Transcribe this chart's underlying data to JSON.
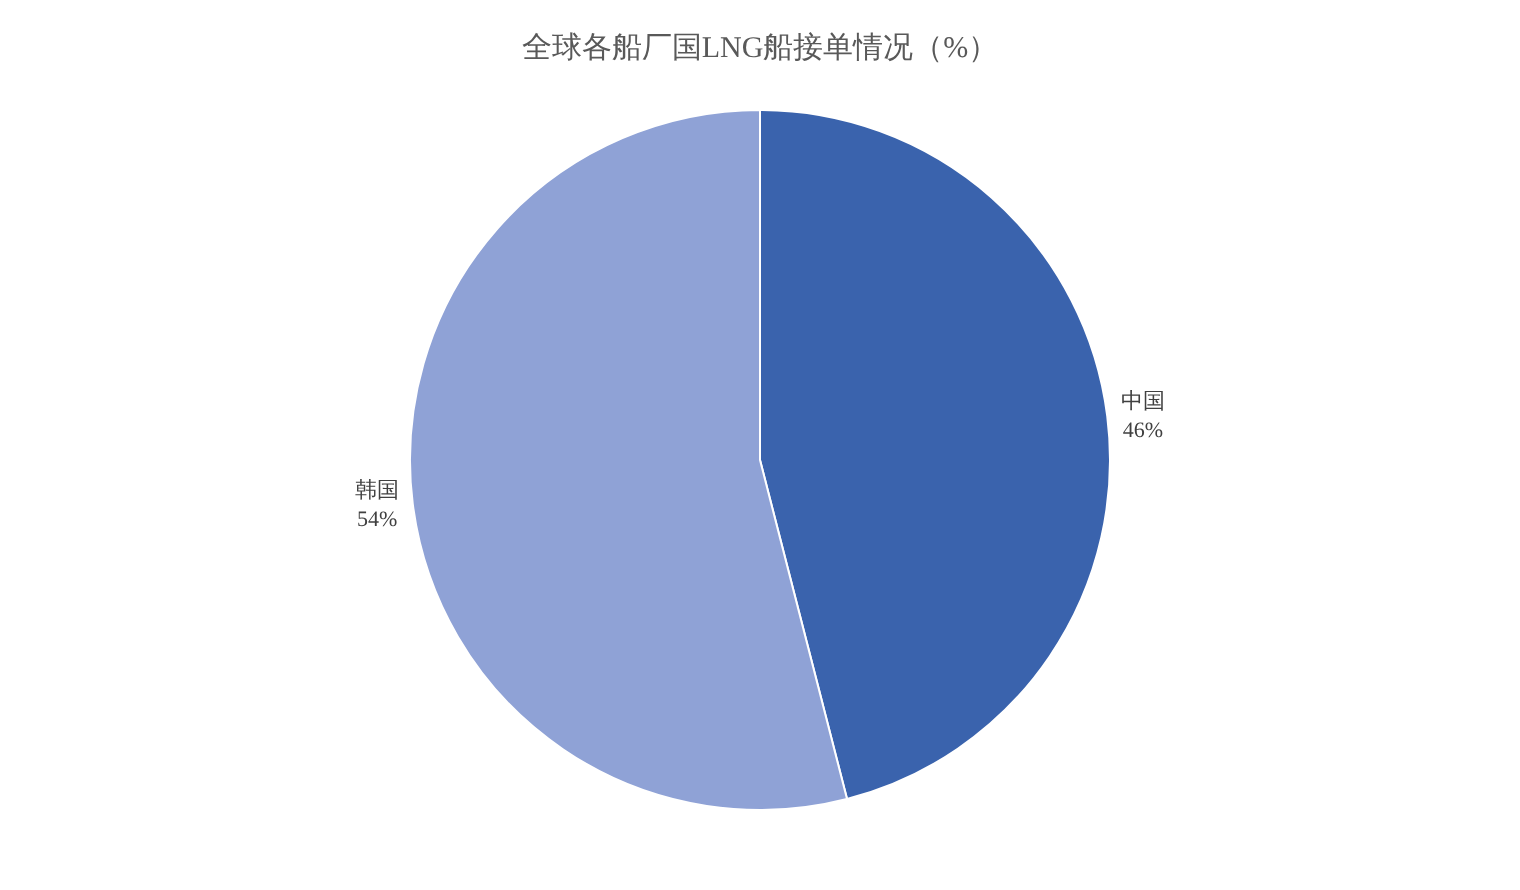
{
  "chart_data": {
    "type": "pie",
    "title": "全球各船厂国LNG船接单情况（%）",
    "categories": [
      "中国",
      "韩国"
    ],
    "values": [
      46,
      54
    ],
    "value_labels": [
      "46%",
      "54%"
    ],
    "colors": [
      "#3a63ad",
      "#8fa2d6"
    ],
    "legend": false
  }
}
